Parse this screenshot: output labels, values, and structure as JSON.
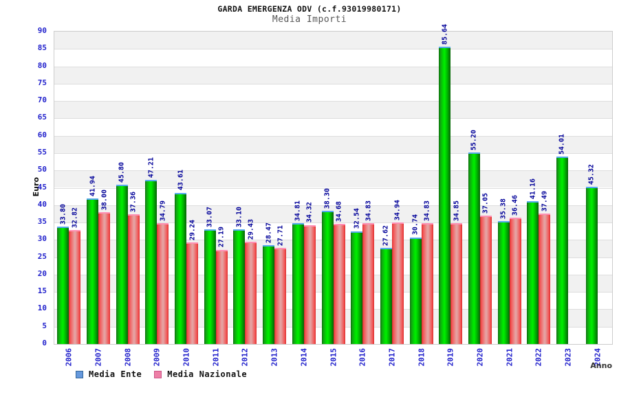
{
  "title": "GARDA EMERGENZA ODV (c.f.93019980171)",
  "subtitle": "Media Importi",
  "chart_data": {
    "type": "bar",
    "title": "GARDA EMERGENZA ODV (c.f.93019980171)",
    "subtitle": "Media Importi",
    "xlabel": "Anno",
    "ylabel": "Euro",
    "ylim": [
      0,
      90
    ],
    "y_tick_step": 5,
    "grid": "horizontal-bands-alternating",
    "legend_position": "bottom-left",
    "value_labels": "rotated-90-above-bars",
    "categories": [
      "2006",
      "2007",
      "2008",
      "2009",
      "2010",
      "2011",
      "2012",
      "2013",
      "2014",
      "2015",
      "2016",
      "2017",
      "2018",
      "2019",
      "2020",
      "2021",
      "2022",
      "2023",
      "2024"
    ],
    "series": [
      {
        "name": "Media Ente",
        "values": [
          33.8,
          41.94,
          45.8,
          47.21,
          43.61,
          33.07,
          33.1,
          28.47,
          34.81,
          38.3,
          32.54,
          27.62,
          30.74,
          85.64,
          55.2,
          35.38,
          41.16,
          54.01,
          45.32
        ]
      },
      {
        "name": "Media Nazionale",
        "values": [
          32.82,
          38.0,
          37.36,
          34.79,
          29.24,
          27.19,
          29.43,
          27.71,
          34.32,
          34.68,
          34.83,
          34.94,
          34.83,
          34.85,
          37.05,
          36.46,
          37.49,
          null,
          null
        ]
      }
    ]
  },
  "colors": {
    "bar_ente_edge": "#0a6b0a",
    "bar_ente_bright": "#00ee00",
    "bar_ente_cap": "#55a8ee",
    "bar_naz_edge": "#d42a2a",
    "bar_naz_center": "#e8a0a0",
    "bar_naz_cap": "#ff8fb4",
    "legend_ente_fill": "#6699dd",
    "legend_ente_border": "#336699",
    "legend_naz_fill": "#ee7fa6",
    "legend_naz_border": "#cc5588",
    "value_label_text": "#000099",
    "axis_tick_text": "#2222cc",
    "band_gray": "#f1f1f1",
    "band_white": "#ffffff",
    "gridline": "#dddddd",
    "title_text": "#111111",
    "subtitle_text": "#555555"
  }
}
